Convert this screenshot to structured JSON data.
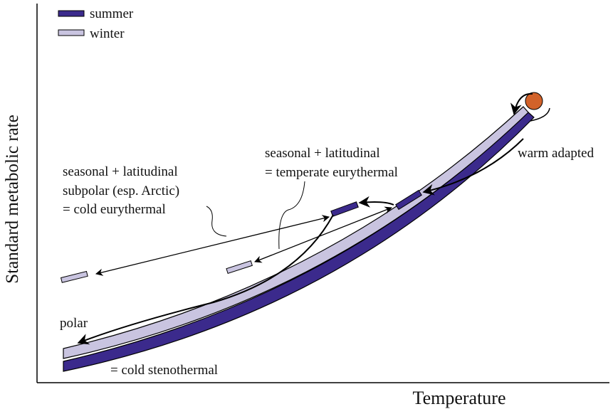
{
  "legend": [
    {
      "label": "summer"
    },
    {
      "label": "winter"
    }
  ],
  "axes": {
    "x_label": "Temperature",
    "y_label": "Standard metabolic rate"
  },
  "annotations": {
    "cold_eurythermal": [
      "seasonal + latitudinal",
      "subpolar (esp. Arctic)",
      "= cold eurythermal"
    ],
    "temperate_eurythermal": [
      "seasonal + latitudinal",
      "= temperate eurythermal"
    ],
    "warm": "warm adapted",
    "polar": "polar",
    "cold_stenothermal": "= cold stenothermal"
  }
}
